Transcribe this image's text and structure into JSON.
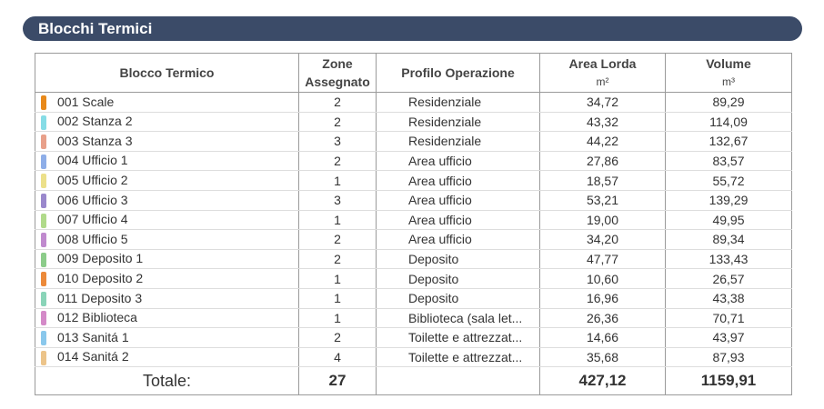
{
  "header": {
    "title": "Blocchi Termici"
  },
  "table": {
    "columns": [
      {
        "label": "Blocco Termico"
      },
      {
        "label": "Zone Assegnato"
      },
      {
        "label": "Profilo Operazione"
      },
      {
        "label": "Area Lorda",
        "unit": "m²"
      },
      {
        "label": "Volume",
        "unit": "m³"
      }
    ],
    "rows": [
      {
        "color": "#e8891a",
        "cells": [
          "001 Scale",
          "2",
          "Residenziale",
          "34,72",
          "89,29"
        ]
      },
      {
        "color": "#86dce6",
        "cells": [
          "002 Stanza 2",
          "2",
          "Residenziale",
          "43,32",
          "114,09"
        ]
      },
      {
        "color": "#e8a08a",
        "cells": [
          "003 Stanza 3",
          "3",
          "Residenziale",
          "44,22",
          "132,67"
        ]
      },
      {
        "color": "#8eaee8",
        "cells": [
          "004 Ufficio 1",
          "2",
          "Area ufficio",
          "27,86",
          "83,57"
        ]
      },
      {
        "color": "#ece08a",
        "cells": [
          "005 Ufficio 2",
          "1",
          "Area ufficio",
          "18,57",
          "55,72"
        ]
      },
      {
        "color": "#9a88cc",
        "cells": [
          "006 Ufficio 3",
          "3",
          "Area ufficio",
          "53,21",
          "139,29"
        ]
      },
      {
        "color": "#b0da8a",
        "cells": [
          "007 Ufficio 4",
          "1",
          "Area ufficio",
          "19,00",
          "49,95"
        ]
      },
      {
        "color": "#c08ace",
        "cells": [
          "008 Ufficio 5",
          "2",
          "Area ufficio",
          "34,20",
          "89,34"
        ]
      },
      {
        "color": "#8ccc8a",
        "cells": [
          "009 Deposito 1",
          "2",
          "Deposito",
          "47,77",
          "133,43"
        ]
      },
      {
        "color": "#ec8a3a",
        "cells": [
          "010 Deposito 2",
          "1",
          "Deposito",
          "10,60",
          "26,57"
        ]
      },
      {
        "color": "#8ad4b8",
        "cells": [
          "011 Deposito 3",
          "1",
          "Deposito",
          "16,96",
          "43,38"
        ]
      },
      {
        "color": "#d48ac8",
        "cells": [
          "012 Biblioteca",
          "1",
          "Biblioteca (sala let...",
          "26,36",
          "70,71"
        ]
      },
      {
        "color": "#8ac8ec",
        "cells": [
          "013 Sanitá 1",
          "2",
          "Toilette e attrezzat...",
          "14,66",
          "43,97"
        ]
      },
      {
        "color": "#ecc48a",
        "cells": [
          "014 Sanitá 2",
          "4",
          "Toilette e attrezzat...",
          "35,68",
          "87,93"
        ]
      }
    ],
    "total": {
      "label": "Totale:",
      "zones": "27",
      "area": "427,12",
      "volume": "1159,91"
    }
  }
}
